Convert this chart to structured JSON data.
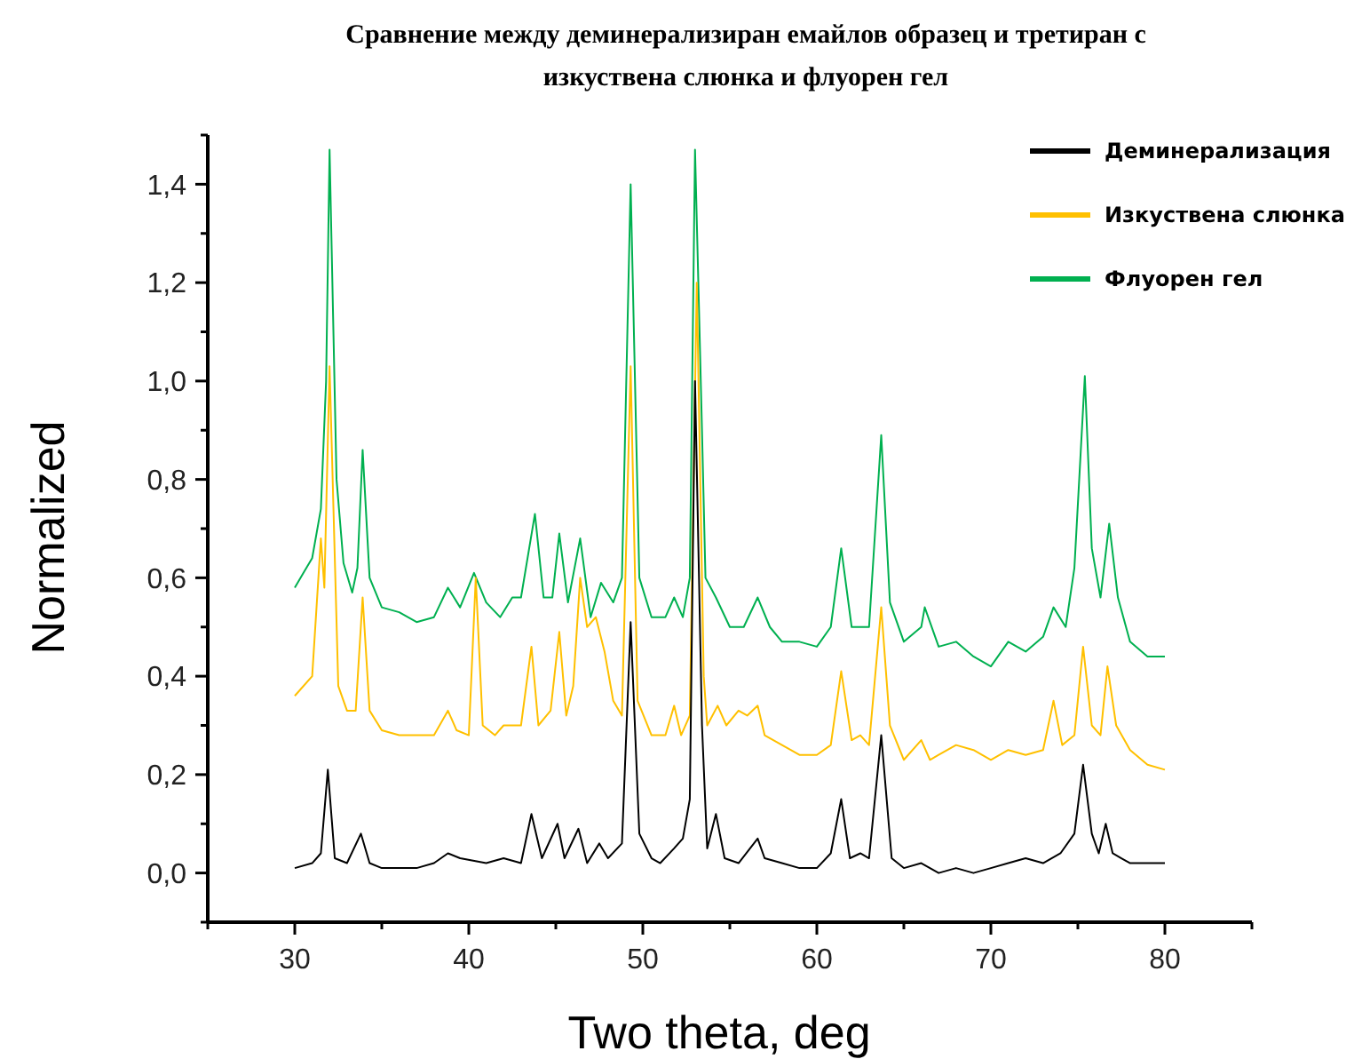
{
  "chart_data": {
    "type": "line",
    "title": "Сравнение между деминерализиран  емайлов образец и третиран с\nизкуствена слюнка и флуорен гел",
    "xlabel": "Two theta, deg",
    "ylabel": "Normalized",
    "xlim": [
      25,
      85
    ],
    "ylim": [
      -0.1,
      1.5
    ],
    "xticks": [
      {
        "value": 25,
        "label": null
      },
      30,
      {
        "value": 35,
        "label": null
      },
      40,
      {
        "value": 45,
        "label": null
      },
      50,
      {
        "value": 55,
        "label": null
      },
      60,
      {
        "value": 65,
        "label": null
      },
      70,
      {
        "value": 75,
        "label": null
      },
      80,
      {
        "value": 85,
        "label": null
      }
    ],
    "yticks": [
      {
        "value": -0.1,
        "label": null
      },
      {
        "value": 0,
        "label": "0,0"
      },
      {
        "value": 0.1,
        "label": null
      },
      {
        "value": 0.2,
        "label": "0,2"
      },
      {
        "value": 0.3,
        "label": null
      },
      {
        "value": 0.4,
        "label": "0,4"
      },
      {
        "value": 0.5,
        "label": null
      },
      {
        "value": 0.6,
        "label": "0,6"
      },
      {
        "value": 0.7,
        "label": null
      },
      {
        "value": 0.8,
        "label": "0,8"
      },
      {
        "value": 0.9,
        "label": null
      },
      {
        "value": 1.0,
        "label": "1,0"
      },
      {
        "value": 1.1,
        "label": null
      },
      {
        "value": 1.2,
        "label": "1,2"
      },
      {
        "value": 1.3,
        "label": null
      },
      {
        "value": 1.4,
        "label": "1,4"
      },
      {
        "value": 1.5,
        "label": null
      }
    ],
    "grid": false,
    "legend": "top right",
    "marker": "none",
    "line_style": "solid",
    "series": [
      {
        "name": "Деминерализация",
        "color": "#000000",
        "x": [
          30,
          31,
          31.5,
          31.9,
          32.3,
          33,
          33.8,
          34.3,
          35,
          36,
          37,
          38,
          38.8,
          39.5,
          41,
          42,
          43,
          43.6,
          44.2,
          45.1,
          45.5,
          46.3,
          46.8,
          47.5,
          48,
          48.8,
          49.3,
          49.8,
          50.5,
          51,
          51.8,
          52.3,
          52.7,
          53,
          53.4,
          53.7,
          54.2,
          54.7,
          55.5,
          56.6,
          57,
          58,
          59,
          60,
          60.8,
          61.4,
          61.9,
          62.5,
          63,
          63.7,
          64.3,
          65,
          66,
          67,
          68,
          69,
          70,
          71,
          72,
          73,
          74,
          74.8,
          75.3,
          75.8,
          76.2,
          76.6,
          77,
          77.5,
          78,
          79,
          80
        ],
        "values": [
          0.01,
          0.02,
          0.04,
          0.21,
          0.03,
          0.02,
          0.08,
          0.02,
          0.01,
          0.01,
          0.01,
          0.02,
          0.04,
          0.03,
          0.02,
          0.03,
          0.02,
          0.12,
          0.03,
          0.1,
          0.03,
          0.09,
          0.02,
          0.06,
          0.03,
          0.06,
          0.51,
          0.08,
          0.03,
          0.02,
          0.05,
          0.07,
          0.15,
          1.0,
          0.3,
          0.05,
          0.12,
          0.03,
          0.02,
          0.07,
          0.03,
          0.02,
          0.01,
          0.01,
          0.04,
          0.15,
          0.03,
          0.04,
          0.03,
          0.28,
          0.03,
          0.01,
          0.02,
          0.0,
          0.01,
          0.0,
          0.01,
          0.02,
          0.03,
          0.02,
          0.04,
          0.08,
          0.22,
          0.08,
          0.04,
          0.1,
          0.04,
          0.03,
          0.02,
          0.02,
          0.02
        ]
      },
      {
        "name": "Изкуствена слюнка",
        "color": "#ffc000",
        "x": [
          30,
          31,
          31.5,
          31.7,
          32,
          32.5,
          33,
          33.5,
          33.9,
          34.3,
          35,
          36,
          37,
          38,
          38.8,
          39.3,
          40,
          40.4,
          40.8,
          41.5,
          42,
          43,
          43.6,
          44,
          44.7,
          45.2,
          45.6,
          46,
          46.4,
          46.8,
          47.3,
          47.8,
          48.3,
          48.8,
          49.3,
          49.7,
          50.5,
          51.3,
          51.8,
          52.2,
          52.7,
          53.1,
          53.5,
          53.7,
          54.3,
          54.8,
          55.5,
          56,
          56.6,
          57,
          58,
          59,
          60,
          60.8,
          61.4,
          62,
          62.5,
          63,
          63.7,
          64.2,
          65,
          66,
          66.5,
          67,
          68,
          69,
          70,
          71,
          72,
          73,
          73.6,
          74.1,
          74.8,
          75.3,
          75.8,
          76.3,
          76.7,
          77.2,
          78,
          79,
          80
        ],
        "values": [
          0.36,
          0.4,
          0.68,
          0.58,
          1.03,
          0.38,
          0.33,
          0.33,
          0.56,
          0.33,
          0.29,
          0.28,
          0.28,
          0.28,
          0.33,
          0.29,
          0.28,
          0.6,
          0.3,
          0.28,
          0.3,
          0.3,
          0.46,
          0.3,
          0.33,
          0.49,
          0.32,
          0.38,
          0.6,
          0.5,
          0.52,
          0.45,
          0.35,
          0.32,
          1.03,
          0.35,
          0.28,
          0.28,
          0.34,
          0.28,
          0.32,
          1.2,
          0.4,
          0.3,
          0.34,
          0.3,
          0.33,
          0.32,
          0.34,
          0.28,
          0.26,
          0.24,
          0.24,
          0.26,
          0.41,
          0.27,
          0.28,
          0.26,
          0.54,
          0.3,
          0.23,
          0.27,
          0.23,
          0.24,
          0.26,
          0.25,
          0.23,
          0.25,
          0.24,
          0.25,
          0.35,
          0.26,
          0.28,
          0.46,
          0.3,
          0.28,
          0.42,
          0.3,
          0.25,
          0.22,
          0.21
        ]
      },
      {
        "name": "Флуорен гел",
        "color": "#00b050",
        "x": [
          30,
          30.5,
          31,
          31.5,
          31.8,
          32,
          32.4,
          32.8,
          33.3,
          33.6,
          33.9,
          34.3,
          35,
          36,
          37,
          38,
          38.8,
          39.5,
          40.3,
          41,
          41.8,
          42.5,
          43,
          43.8,
          44.3,
          44.8,
          45.2,
          45.7,
          46.4,
          47,
          47.6,
          48.3,
          48.8,
          49.3,
          49.8,
          50.5,
          51.3,
          51.8,
          52.3,
          52.7,
          53,
          53.4,
          53.6,
          54.2,
          55,
          55.8,
          56.6,
          57.3,
          58,
          59,
          60,
          60.8,
          61.4,
          62,
          63,
          63.7,
          64.2,
          65,
          66,
          66.2,
          67,
          68,
          69,
          70,
          71,
          72,
          73,
          73.6,
          74.3,
          74.8,
          75.4,
          75.8,
          76.3,
          76.8,
          77.3,
          78,
          79,
          80
        ],
        "values": [
          0.58,
          0.61,
          0.64,
          0.74,
          1.0,
          1.47,
          0.8,
          0.63,
          0.57,
          0.62,
          0.86,
          0.6,
          0.54,
          0.53,
          0.51,
          0.52,
          0.58,
          0.54,
          0.61,
          0.55,
          0.52,
          0.56,
          0.56,
          0.73,
          0.56,
          0.56,
          0.69,
          0.55,
          0.68,
          0.52,
          0.59,
          0.55,
          0.6,
          1.4,
          0.6,
          0.52,
          0.52,
          0.56,
          0.52,
          0.6,
          1.47,
          0.9,
          0.6,
          0.56,
          0.5,
          0.5,
          0.56,
          0.5,
          0.47,
          0.47,
          0.46,
          0.5,
          0.66,
          0.5,
          0.5,
          0.89,
          0.55,
          0.47,
          0.5,
          0.54,
          0.46,
          0.47,
          0.44,
          0.42,
          0.47,
          0.45,
          0.48,
          0.54,
          0.5,
          0.62,
          1.01,
          0.66,
          0.56,
          0.71,
          0.56,
          0.47,
          0.44,
          0.44
        ]
      }
    ]
  }
}
